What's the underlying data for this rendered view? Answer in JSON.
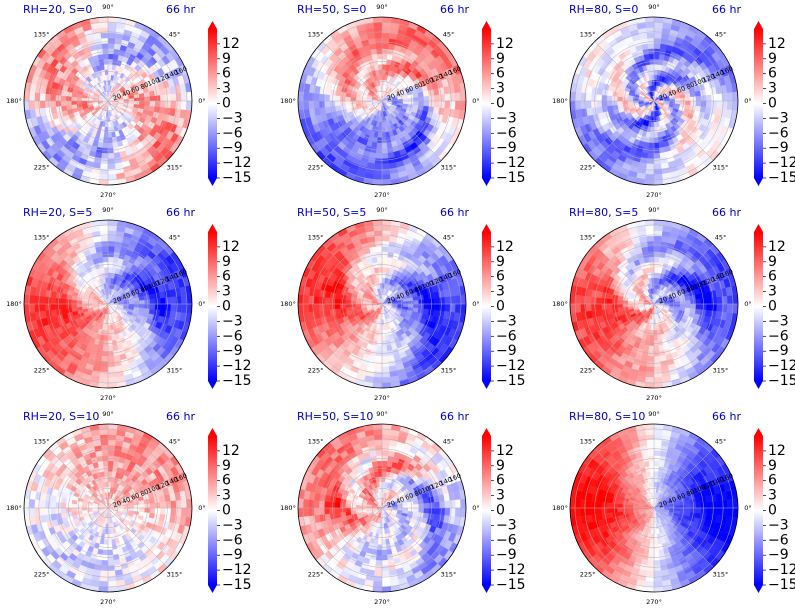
{
  "chart_data": {
    "type": "heatmap",
    "projection": "polar",
    "time_label": "66 hr",
    "angle_ticks": [
      "0°",
      "45°",
      "90°",
      "135°",
      "180°",
      "225°",
      "270°",
      "315°"
    ],
    "radial_ticks": [
      "20",
      "40",
      "60",
      "80",
      "100",
      "120",
      "140",
      "160"
    ],
    "radial_range": [
      0,
      170
    ],
    "colorbar": {
      "colormap": "bwr",
      "ticks": [
        "12",
        "9",
        "6",
        "3",
        "0",
        "−3",
        "−6",
        "−9",
        "−12",
        "−15"
      ],
      "range": [
        -15,
        15
      ],
      "extend": "both"
    },
    "panels": [
      {
        "title": "RH=20, S=0",
        "pattern": {
          "base": 0.05,
          "amp": 0.45,
          "ph": 1.2,
          "k": 2,
          "swirl": 0.025,
          "rh": 0.12,
          "noise": 0.55,
          "lobe": 0.0
        }
      },
      {
        "title": "RH=50, S=0",
        "pattern": {
          "base": -0.05,
          "amp": 0.65,
          "ph": 2.6,
          "k": 1,
          "swirl": 0.03,
          "rh": 0.25,
          "noise": 0.35,
          "lobe": 0.3
        }
      },
      {
        "title": "RH=80, S=0",
        "pattern": {
          "base": -0.25,
          "amp": 0.3,
          "ph": 0.5,
          "k": 2,
          "swirl": 0.02,
          "rh": 0.6,
          "noise": 0.3,
          "lobe": 0.0
        }
      },
      {
        "title": "RH=20, S=5",
        "pattern": {
          "base": 0.0,
          "amp": 0.8,
          "ph": 4.0,
          "k": 1,
          "swirl": 0.012,
          "rh": 0.2,
          "noise": 0.3,
          "lobe": 0.2
        }
      },
      {
        "title": "RH=50, S=5",
        "pattern": {
          "base": 0.0,
          "amp": 0.8,
          "ph": 3.6,
          "k": 1,
          "swirl": 0.015,
          "rh": 0.25,
          "noise": 0.3,
          "lobe": 0.2
        }
      },
      {
        "title": "RH=80, S=5",
        "pattern": {
          "base": 0.0,
          "amp": 0.75,
          "ph": 3.9,
          "k": 1,
          "swirl": 0.01,
          "rh": 0.35,
          "noise": 0.3,
          "lobe": 0.25
        }
      },
      {
        "title": "RH=20, S=10",
        "pattern": {
          "base": 0.12,
          "amp": 0.3,
          "ph": 1.5,
          "k": 1,
          "swirl": 0.01,
          "rh": 0.05,
          "noise": 0.5,
          "lobe": 0.0
        }
      },
      {
        "title": "RH=50, S=10",
        "pattern": {
          "base": 0.08,
          "amp": 0.45,
          "ph": 3.0,
          "k": 1,
          "swirl": 0.01,
          "rh": 0.3,
          "noise": 0.45,
          "lobe": 0.4
        }
      },
      {
        "title": "RH=80, S=10",
        "pattern": {
          "base": 0.0,
          "amp": 1.0,
          "ph": 3.3,
          "k": 1,
          "swirl": 0.004,
          "rh": 0.1,
          "noise": 0.2,
          "lobe": 0.0
        }
      }
    ]
  }
}
